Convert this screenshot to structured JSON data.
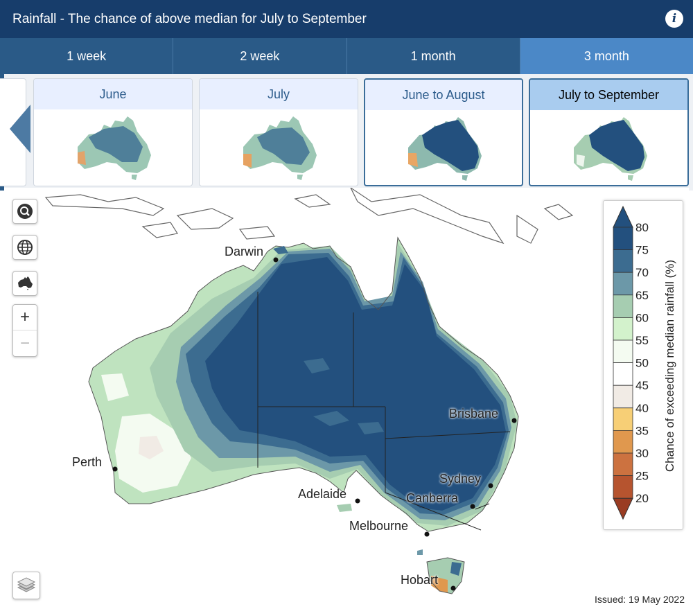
{
  "header": {
    "title": "Rainfall - The chance of above median for July to September",
    "info_icon": "info-icon"
  },
  "tabs": [
    {
      "label": "1 week",
      "active": false
    },
    {
      "label": "2 week",
      "active": false
    },
    {
      "label": "1 month",
      "active": false
    },
    {
      "label": "3 month",
      "active": true
    }
  ],
  "thumbnails": [
    {
      "label": "June",
      "selected": false
    },
    {
      "label": "July",
      "selected": false
    },
    {
      "label": "June to August",
      "selected": true
    },
    {
      "label": "July to September",
      "selected": true,
      "current": true
    }
  ],
  "map": {
    "cities": [
      "Darwin",
      "Brisbane",
      "Perth",
      "Sydney",
      "Adelaide",
      "Canberra",
      "Melbourne",
      "Hobart"
    ],
    "controls": [
      "search-icon",
      "globe-icon",
      "australia-icon",
      "zoom-in",
      "zoom-out",
      "layers-icon"
    ],
    "zoom_in_label": "+",
    "zoom_out_label": "−"
  },
  "legend": {
    "title": "Chance of exceeding median rainfall (%)",
    "ticks": [
      "80",
      "75",
      "70",
      "65",
      "60",
      "55",
      "50",
      "45",
      "40",
      "35",
      "30",
      "25",
      "20"
    ],
    "colors": [
      "#23507e",
      "#3c6c90",
      "#6c98a8",
      "#a6cdb1",
      "#d3f2cc",
      "#f4fbf1",
      "#ffffff",
      "#f1ebe5",
      "#f7cf76",
      "#e0984e",
      "#cc7240",
      "#b6542f",
      "#9a3c22"
    ]
  },
  "issued": "Issued: 19 May 2022"
}
